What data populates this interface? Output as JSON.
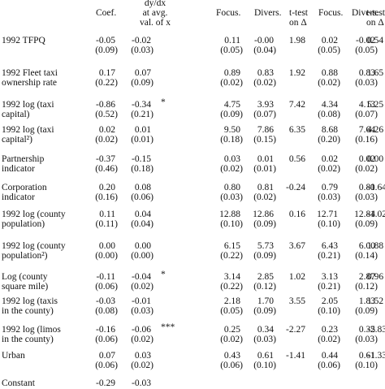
{
  "headers": {
    "coef": "Coef.",
    "dydx": [
      "dy/dx",
      "at avg.",
      "val. of x"
    ],
    "focus1": "Focus.",
    "divers1": "Divers.",
    "ttest1": [
      "t-test",
      "on Δ"
    ],
    "focus2": "Focus.",
    "divers2": "Divers.",
    "ttest2": [
      "t-test",
      "on Δ"
    ]
  },
  "rows": [
    {
      "label": [
        "1992 TFPQ"
      ],
      "coef": "-0.05",
      "coef_se": "(0.09)",
      "dydx": "-0.02",
      "dydx_se": "(0.03)",
      "sig": "",
      "focus1": "0.11",
      "focus1_se": "(0.05)",
      "divers1": "-0.00",
      "divers1_se": "(0.04)",
      "ttest1": "1.98",
      "focus2": "0.02",
      "focus2_se": "(0.05)",
      "divers2": "-0.02",
      "divers2_se": "(0.05)",
      "ttest2": "0.54"
    },
    {
      "label": [
        "1992 Fleet taxi",
        "ownership rate"
      ],
      "coef": "0.17",
      "coef_se": "(0.22)",
      "dydx": "0.07",
      "dydx_se": "(0.09)",
      "sig": "",
      "focus1": "0.89",
      "focus1_se": "(0.02)",
      "divers1": "0.83",
      "divers1_se": "(0.02)",
      "ttest1": "1.92",
      "focus2": "0.88",
      "focus2_se": "(0.02)",
      "divers2": "0.83",
      "divers2_se": "(0.03)",
      "ttest2": "1.65"
    },
    {
      "label": [
        "1992 log (taxi",
        "capital)"
      ],
      "coef": "-0.86",
      "coef_se": "(0.52)",
      "dydx": "-0.34",
      "dydx_se": "(0.21)",
      "sig": "*",
      "focus1": "4.75",
      "focus1_se": "(0.09)",
      "divers1": "3.93",
      "divers1_se": "(0.07)",
      "ttest1": "7.42",
      "focus2": "4.34",
      "focus2_se": "(0.08)",
      "divers2": "4.13",
      "divers2_se": "(0.07)",
      "ttest2": "5.25"
    },
    {
      "label": [
        "1992 log (taxi",
        "capital²)"
      ],
      "coef": "0.02",
      "coef_se": "(0.02)",
      "dydx": "0.01",
      "dydx_se": "(0.01)",
      "sig": "",
      "focus1": "9.50",
      "focus1_se": "(0.18)",
      "divers1": "7.86",
      "divers1_se": "(0.15)",
      "ttest1": "6.35",
      "focus2": "8.68",
      "focus2_se": "(0.20)",
      "divers2": "7.64",
      "divers2_se": "(0.16)",
      "ttest2": "4.26"
    },
    {
      "label": [
        "Partnership",
        "indicator"
      ],
      "coef": "-0.37",
      "coef_se": "(0.46)",
      "dydx": "-0.15",
      "dydx_se": "(0.18)",
      "sig": "",
      "focus1": "0.03",
      "focus1_se": "(0.02)",
      "divers1": "0.01",
      "divers1_se": "(0.01)",
      "ttest1": "0.56",
      "focus2": "0.02",
      "focus2_se": "(0.02)",
      "divers2": "0.02",
      "divers2_se": "(0.02)",
      "ttest2": "0.00"
    },
    {
      "label": [
        "Corporation",
        "indicator"
      ],
      "coef": "0.20",
      "coef_se": "(0.16)",
      "dydx": "0.08",
      "dydx_se": "(0.06)",
      "sig": "",
      "focus1": "0.80",
      "focus1_se": "(0.03)",
      "divers1": "0.81",
      "divers1_se": "(0.02)",
      "ttest1": "-0.24",
      "focus2": "0.79",
      "focus2_se": "(0.03)",
      "divers2": "0.81",
      "divers2_se": "(0.03)",
      "ttest2": "-0.64"
    },
    {
      "label": [
        "1992 log (county",
        "population)"
      ],
      "coef": "0.11",
      "coef_se": "(0.11)",
      "dydx": "0.04",
      "dydx_se": "(0.04)",
      "sig": "",
      "focus1": "12.88",
      "focus1_se": "(0.10)",
      "divers1": "12.86",
      "divers1_se": "(0.09)",
      "ttest1": "0.16",
      "focus2": "12.71",
      "focus2_se": "(0.10)",
      "divers2": "12.84",
      "divers2_se": "(0.09)",
      "ttest2": "-1.02"
    },
    {
      "label": [
        "1992 log (county",
        "population²)"
      ],
      "coef": "0.00",
      "coef_se": "(0.00)",
      "dydx": "0.00",
      "dydx_se": "(0.00)",
      "sig": "",
      "focus1": "6.15",
      "focus1_se": "(0.22)",
      "divers1": "5.73",
      "divers1_se": "(0.09)",
      "ttest1": "3.67",
      "focus2": "6.43",
      "focus2_se": "(0.21)",
      "divers2": "6.00",
      "divers2_se": "(0.14)",
      "ttest2": "1.88"
    },
    {
      "label": [
        "Log (county",
        "square mile)"
      ],
      "coef": "-0.11",
      "coef_se": "(0.06)",
      "dydx": "-0.04",
      "dydx_se": "(0.02)",
      "sig": "*",
      "focus1": "3.14",
      "focus1_se": "(0.22)",
      "divers1": "2.85",
      "divers1_se": "(0.12)",
      "ttest1": "1.02",
      "focus2": "3.13",
      "focus2_se": "(0.21)",
      "divers2": "2.87",
      "divers2_se": "(0.12)",
      "ttest2": "0.96"
    },
    {
      "label": [
        "1992 log (taxis",
        "in the county)"
      ],
      "coef": "-0.03",
      "coef_se": "(0.08)",
      "dydx": "-0.01",
      "dydx_se": "(0.03)",
      "sig": "",
      "focus1": "2.18",
      "focus1_se": "(0.05)",
      "divers1": "1.70",
      "divers1_se": "(0.09)",
      "ttest1": "3.55",
      "focus2": "2.05",
      "focus2_se": "(0.10)",
      "divers2": "1.83",
      "divers2_se": "(0.09)",
      "ttest2": "1.52"
    },
    {
      "label": [
        "1992 log (limos",
        "in the county)"
      ],
      "coef": "-0.16",
      "coef_se": "(0.06)",
      "dydx": "-0.06",
      "dydx_se": "(0.02)",
      "sig": "***",
      "focus1": "0.25",
      "focus1_se": "(0.02)",
      "divers1": "0.34",
      "divers1_se": "(0.03)",
      "ttest1": "-2.27",
      "focus2": "0.23",
      "focus2_se": "(0.02)",
      "divers2": "0.35",
      "divers2_se": "(0.03)",
      "ttest2": "-2.83"
    },
    {
      "label": [
        "Urban"
      ],
      "coef": "0.07",
      "coef_se": "(0.06)",
      "dydx": "0.03",
      "dydx_se": "(0.02)",
      "sig": "",
      "focus1": "0.43",
      "focus1_se": "(0.06)",
      "divers1": "0.61",
      "divers1_se": "(0.10)",
      "ttest1": "-1.41",
      "focus2": "0.44",
      "focus2_se": "(0.06)",
      "divers2": "0.61",
      "divers2_se": "(0.10)",
      "ttest2": "-1.33"
    },
    {
      "label": [
        "Constant"
      ],
      "coef": "-0.29",
      "coef_se": "",
      "dydx": "-0.03",
      "dydx_se": "",
      "sig": "",
      "focus1": "",
      "focus1_se": "",
      "divers1": "",
      "divers1_se": "",
      "ttest1": "",
      "focus2": "",
      "focus2_se": "",
      "divers2": "",
      "divers2_se": "",
      "ttest2": ""
    }
  ]
}
